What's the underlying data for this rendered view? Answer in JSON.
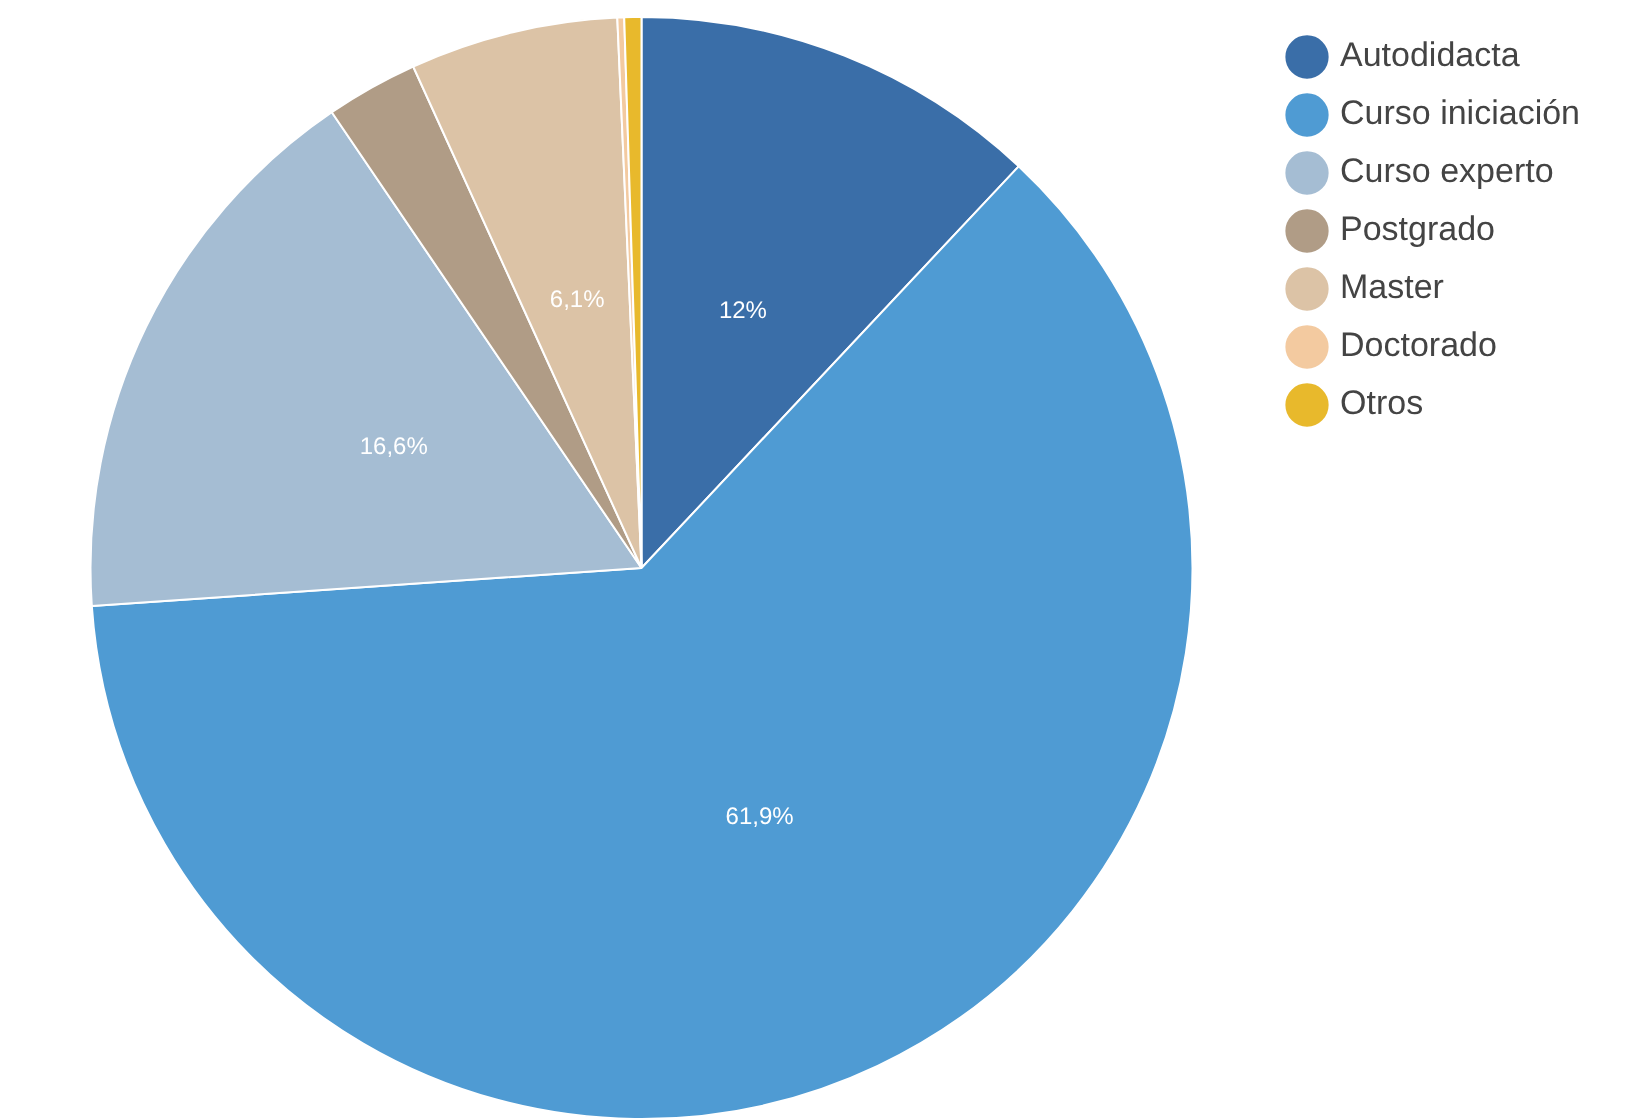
{
  "chart_data": {
    "type": "pie",
    "categories": [
      "Autodidacta",
      "Curso iniciación",
      "Curso experto",
      "Postgrado",
      "Master",
      "Doctorado",
      "Otros"
    ],
    "values": [
      12,
      61.9,
      16.6,
      2.7,
      6.1,
      0.2,
      0.5
    ],
    "colors": [
      "#3a6ea8",
      "#4f9bd3",
      "#a5bdd3",
      "#b09c86",
      "#dcc3a6",
      "#f3caa0",
      "#e8b92c"
    ],
    "value_labels": [
      "12%",
      "61,9%",
      "16,6%",
      null,
      "6,1%",
      null,
      null
    ],
    "legend": "top right"
  }
}
